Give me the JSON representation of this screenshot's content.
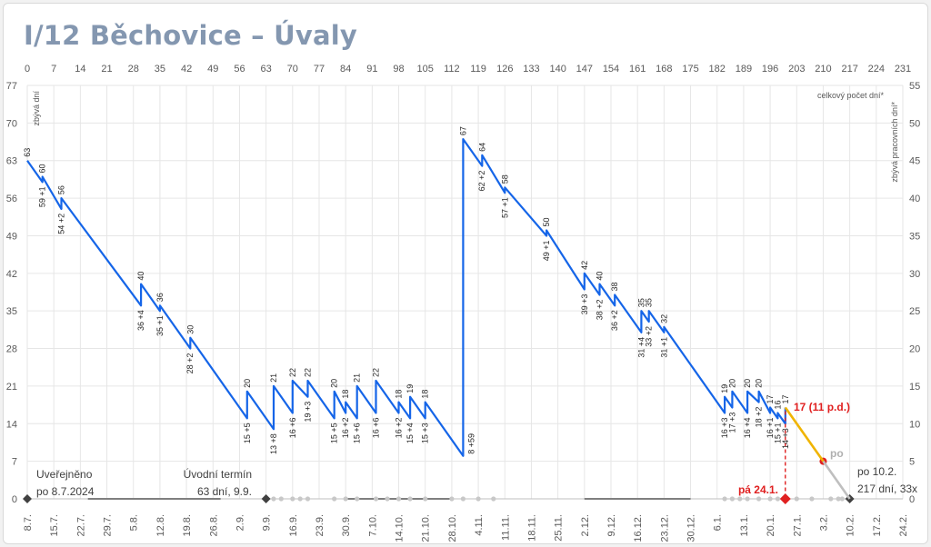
{
  "chart_data": {
    "type": "line",
    "title": "I/12 Běchovice – Úvaly",
    "y_left_label": "zbývá dní",
    "y_right_label": "zbývá pracovních dní*",
    "top_right_label": "celkový počet dní*",
    "x_top_ticks": [
      0,
      7,
      14,
      21,
      28,
      35,
      42,
      49,
      56,
      63,
      70,
      77,
      84,
      91,
      98,
      105,
      112,
      119,
      126,
      133,
      140,
      147,
      154,
      161,
      168,
      175,
      182,
      189,
      196,
      203,
      210,
      217,
      224,
      231
    ],
    "x_bottom_ticks": [
      "8.7.",
      "15.7.",
      "22.7.",
      "29.7.",
      "5.8.",
      "12.8.",
      "19.8.",
      "26.8.",
      "2.9.",
      "9.9.",
      "16.9.",
      "23.9.",
      "30.9.",
      "7.10.",
      "14.10.",
      "21.10.",
      "28.10.",
      "4.11.",
      "11.11.",
      "18.11.",
      "25.11.",
      "2.12.",
      "9.12.",
      "16.12.",
      "23.12.",
      "30.12.",
      "6.1.",
      "13.1.",
      "20.1.",
      "27.1.",
      "3.2.",
      "10.2.",
      "17.2.",
      "24.2."
    ],
    "y_left_ticks": [
      0,
      7,
      14,
      21,
      28,
      35,
      42,
      49,
      56,
      63,
      70,
      77
    ],
    "y_right_ticks": [
      0,
      5,
      10,
      15,
      20,
      25,
      30,
      35,
      40,
      45,
      50,
      55
    ],
    "ylim": [
      0,
      77
    ],
    "xlim": [
      0,
      231
    ],
    "grid": true,
    "series": [
      {
        "color": "#1565e8",
        "points": [
          [
            0,
            63
          ],
          [
            4,
            59
          ],
          [
            4,
            60
          ],
          [
            9,
            54
          ],
          [
            9,
            56
          ],
          [
            30,
            36
          ],
          [
            30,
            40
          ],
          [
            35,
            35
          ],
          [
            35,
            36
          ],
          [
            43,
            28
          ],
          [
            43,
            30
          ],
          [
            58,
            15
          ],
          [
            58,
            20
          ],
          [
            65,
            13
          ],
          [
            65,
            21
          ],
          [
            70,
            16
          ],
          [
            70,
            22
          ],
          [
            74,
            19
          ],
          [
            74,
            22
          ],
          [
            81,
            15
          ],
          [
            81,
            20
          ],
          [
            84,
            16
          ],
          [
            84,
            18
          ],
          [
            87,
            15
          ],
          [
            87,
            21
          ],
          [
            92,
            16
          ],
          [
            92,
            22
          ],
          [
            98,
            16
          ],
          [
            98,
            18
          ],
          [
            101,
            15
          ],
          [
            101,
            19
          ],
          [
            105,
            15
          ],
          [
            105,
            18
          ],
          [
            115,
            8
          ],
          [
            115,
            67
          ],
          [
            120,
            62
          ],
          [
            120,
            64
          ],
          [
            126,
            57
          ],
          [
            126,
            58
          ],
          [
            137,
            49
          ],
          [
            137,
            50
          ],
          [
            147,
            39
          ],
          [
            147,
            42
          ],
          [
            151,
            38
          ],
          [
            151,
            40
          ],
          [
            155,
            36
          ],
          [
            155,
            38
          ],
          [
            162,
            31
          ],
          [
            162,
            35
          ],
          [
            164,
            33
          ],
          [
            164,
            35
          ],
          [
            168,
            31
          ],
          [
            168,
            32
          ],
          [
            184,
            16
          ],
          [
            184,
            19
          ],
          [
            186,
            17
          ],
          [
            186,
            20
          ],
          [
            190,
            16
          ],
          [
            190,
            20
          ],
          [
            193,
            18
          ],
          [
            193,
            20
          ],
          [
            196,
            16
          ],
          [
            196,
            17
          ],
          [
            198,
            15
          ],
          [
            198,
            16
          ],
          [
            200,
            14
          ],
          [
            200,
            17
          ]
        ]
      },
      {
        "color": "#f0b400",
        "points": [
          [
            200,
            17
          ],
          [
            210,
            7
          ]
        ]
      },
      {
        "color": "#bfbfbf",
        "points": [
          [
            210,
            7
          ],
          [
            217,
            0
          ]
        ]
      }
    ],
    "labels": [
      {
        "x": 0,
        "y": 63,
        "text": "63",
        "pos": "above"
      },
      {
        "x": 4,
        "y": 60,
        "text": "60",
        "pos": "above"
      },
      {
        "x": 4,
        "y": 59,
        "text": "59 +1",
        "pos": "below"
      },
      {
        "x": 9,
        "y": 56,
        "text": "56",
        "pos": "above"
      },
      {
        "x": 9,
        "y": 54,
        "text": "54 +2",
        "pos": "below"
      },
      {
        "x": 30,
        "y": 40,
        "text": "40",
        "pos": "above"
      },
      {
        "x": 30,
        "y": 36,
        "text": "36 +4",
        "pos": "below"
      },
      {
        "x": 35,
        "y": 36,
        "text": "36",
        "pos": "above"
      },
      {
        "x": 35,
        "y": 35,
        "text": "35 +1",
        "pos": "below"
      },
      {
        "x": 43,
        "y": 30,
        "text": "30",
        "pos": "above"
      },
      {
        "x": 43,
        "y": 28,
        "text": "28 +2",
        "pos": "below"
      },
      {
        "x": 58,
        "y": 20,
        "text": "20",
        "pos": "above"
      },
      {
        "x": 58,
        "y": 15,
        "text": "15 +5",
        "pos": "below"
      },
      {
        "x": 65,
        "y": 21,
        "text": "21",
        "pos": "above"
      },
      {
        "x": 65,
        "y": 13,
        "text": "13 +8",
        "pos": "below"
      },
      {
        "x": 70,
        "y": 22,
        "text": "22",
        "pos": "above"
      },
      {
        "x": 70,
        "y": 16,
        "text": "16 +6",
        "pos": "below"
      },
      {
        "x": 74,
        "y": 22,
        "text": "22",
        "pos": "above"
      },
      {
        "x": 74,
        "y": 19,
        "text": "19 +3",
        "pos": "below"
      },
      {
        "x": 81,
        "y": 20,
        "text": "20",
        "pos": "above"
      },
      {
        "x": 81,
        "y": 15,
        "text": "15 +5",
        "pos": "below"
      },
      {
        "x": 84,
        "y": 18,
        "text": "18",
        "pos": "above"
      },
      {
        "x": 84,
        "y": 16,
        "text": "16 +2",
        "pos": "below"
      },
      {
        "x": 87,
        "y": 21,
        "text": "21",
        "pos": "above"
      },
      {
        "x": 87,
        "y": 15,
        "text": "15 +6",
        "pos": "below"
      },
      {
        "x": 92,
        "y": 22,
        "text": "22",
        "pos": "above"
      },
      {
        "x": 92,
        "y": 16,
        "text": "16 +6",
        "pos": "below"
      },
      {
        "x": 98,
        "y": 18,
        "text": "18",
        "pos": "above"
      },
      {
        "x": 98,
        "y": 16,
        "text": "16 +2",
        "pos": "below"
      },
      {
        "x": 101,
        "y": 19,
        "text": "19",
        "pos": "above"
      },
      {
        "x": 101,
        "y": 15,
        "text": "15 +4",
        "pos": "below"
      },
      {
        "x": 105,
        "y": 18,
        "text": "18",
        "pos": "above"
      },
      {
        "x": 105,
        "y": 15,
        "text": "15 +3",
        "pos": "below"
      },
      {
        "x": 115,
        "y": 67,
        "text": "67",
        "pos": "above"
      },
      {
        "x": 115,
        "y": 8,
        "text": "8 +59",
        "pos": "right"
      },
      {
        "x": 120,
        "y": 64,
        "text": "64",
        "pos": "above"
      },
      {
        "x": 120,
        "y": 62,
        "text": "62 +2",
        "pos": "below"
      },
      {
        "x": 126,
        "y": 58,
        "text": "58",
        "pos": "above"
      },
      {
        "x": 126,
        "y": 57,
        "text": "57 +1",
        "pos": "below"
      },
      {
        "x": 137,
        "y": 50,
        "text": "50",
        "pos": "above"
      },
      {
        "x": 137,
        "y": 49,
        "text": "49 +1",
        "pos": "below"
      },
      {
        "x": 147,
        "y": 42,
        "text": "42",
        "pos": "above"
      },
      {
        "x": 147,
        "y": 39,
        "text": "39 +3",
        "pos": "below"
      },
      {
        "x": 151,
        "y": 40,
        "text": "40",
        "pos": "above"
      },
      {
        "x": 151,
        "y": 38,
        "text": "38 +2",
        "pos": "below"
      },
      {
        "x": 155,
        "y": 38,
        "text": "38",
        "pos": "above"
      },
      {
        "x": 155,
        "y": 36,
        "text": "36 +2",
        "pos": "below"
      },
      {
        "x": 162,
        "y": 35,
        "text": "35",
        "pos": "above"
      },
      {
        "x": 162,
        "y": 31,
        "text": "31 +4",
        "pos": "below"
      },
      {
        "x": 164,
        "y": 35,
        "text": "35",
        "pos": "above"
      },
      {
        "x": 164,
        "y": 33,
        "text": "33 +2",
        "pos": "below"
      },
      {
        "x": 168,
        "y": 32,
        "text": "32",
        "pos": "above"
      },
      {
        "x": 168,
        "y": 31,
        "text": "31 +1",
        "pos": "below"
      },
      {
        "x": 184,
        "y": 19,
        "text": "19",
        "pos": "above"
      },
      {
        "x": 184,
        "y": 16,
        "text": "16 +3",
        "pos": "below"
      },
      {
        "x": 186,
        "y": 20,
        "text": "20",
        "pos": "above"
      },
      {
        "x": 186,
        "y": 17,
        "text": "17 +3",
        "pos": "below"
      },
      {
        "x": 190,
        "y": 20,
        "text": "20",
        "pos": "above"
      },
      {
        "x": 190,
        "y": 16,
        "text": "16 +4",
        "pos": "below"
      },
      {
        "x": 193,
        "y": 20,
        "text": "20",
        "pos": "above"
      },
      {
        "x": 193,
        "y": 18,
        "text": "18 +2",
        "pos": "below"
      },
      {
        "x": 196,
        "y": 17,
        "text": "17",
        "pos": "above"
      },
      {
        "x": 196,
        "y": 16,
        "text": "16 +1",
        "pos": "below"
      },
      {
        "x": 198,
        "y": 16,
        "text": "16",
        "pos": "above"
      },
      {
        "x": 198,
        "y": 15,
        "text": "15 +1",
        "pos": "below"
      },
      {
        "x": 200,
        "y": 17,
        "text": "17",
        "pos": "above"
      },
      {
        "x": 200,
        "y": 14,
        "text": "14 +3",
        "pos": "below"
      }
    ],
    "annotations": {
      "published_line1": "Uveřejněno",
      "published_line2": "po 8.7.2024",
      "initial_line1": "Úvodní termín",
      "initial_line2": "63 dní, 9.9.",
      "current_value": "17 (11 p.d.)",
      "current_date": "pá 24.1.",
      "forecast_label": "po",
      "end_line1": "po 10.2.",
      "end_line2": "217 dní, 33x"
    },
    "markers": {
      "black_diamonds_x": [
        0,
        63,
        217
      ],
      "red_diamond_x": 200,
      "red_dot": [
        210,
        7
      ],
      "grey_dots_x": [
        65,
        67,
        70,
        72,
        74,
        81,
        84,
        87,
        92,
        95,
        98,
        101,
        105,
        112,
        115,
        119,
        123,
        184,
        186,
        188,
        190,
        193,
        196,
        198,
        203,
        207,
        212,
        214,
        215
      ],
      "grey_spans": [
        [
          16,
          51
        ],
        [
          84,
          112
        ],
        [
          147,
          175
        ]
      ]
    },
    "colors": {
      "line": "#1565e8",
      "forecast": "#f0b400",
      "projection": "#bfbfbf",
      "accent_red": "#e02020",
      "title": "#8497b0"
    }
  }
}
